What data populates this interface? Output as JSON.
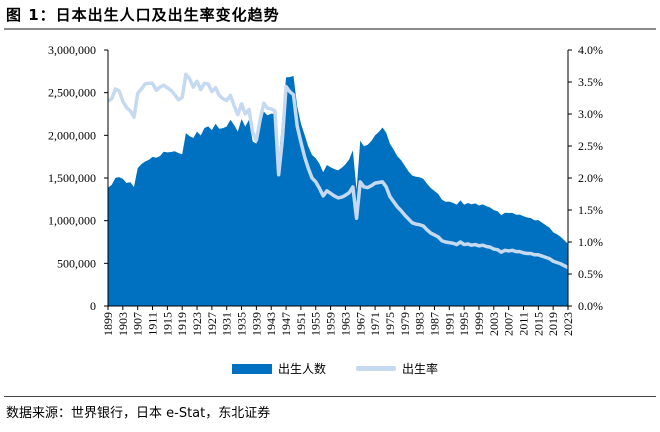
{
  "title": "图 1：日本出生人口及出生率变化趋势",
  "source": "数据来源：世界银行，日本 e-Stat，东北证券",
  "chart_data": {
    "type": "area+line",
    "title": "图 1：日本出生人口及出生率变化趋势",
    "x_start": 1899,
    "x_end": 2023,
    "x_tick_labels": [
      "1899",
      "1903",
      "1907",
      "1911",
      "1915",
      "1919",
      "1923",
      "1927",
      "1931",
      "1935",
      "1939",
      "1943",
      "1947",
      "1951",
      "1955",
      "1959",
      "1963",
      "1967",
      "1971",
      "1975",
      "1979",
      "1983",
      "1987",
      "1991",
      "1995",
      "1999",
      "2003",
      "2007",
      "2011",
      "2015",
      "2019",
      "2023"
    ],
    "y_left": {
      "range": [
        0,
        3000000
      ],
      "tick_labels": [
        "0",
        "500,000",
        "1,000,000",
        "1,500,000",
        "2,000,000",
        "2,500,000",
        "3,000,000"
      ]
    },
    "y_right": {
      "range": [
        0,
        4.0
      ],
      "unit": "%",
      "tick_labels": [
        "0.0%",
        "0.5%",
        "1.0%",
        "1.5%",
        "2.0%",
        "2.5%",
        "3.0%",
        "3.5%",
        "4.0%"
      ]
    },
    "grid": false,
    "legend_position": "bottom",
    "series": [
      {
        "name": "出生人数",
        "type": "area",
        "axis": "left",
        "color": "#0070C0",
        "values": [
          1386000,
          1420000,
          1501000,
          1510000,
          1490000,
          1441000,
          1452000,
          1395000,
          1615000,
          1663000,
          1694000,
          1712000,
          1747000,
          1737000,
          1757000,
          1808000,
          1800000,
          1804000,
          1813000,
          1792000,
          1779000,
          2026000,
          1991000,
          1969000,
          2043000,
          1998000,
          2086000,
          2105000,
          2061000,
          2136000,
          2077000,
          2085000,
          2103000,
          2183000,
          2121000,
          2044000,
          2191000,
          2102000,
          2181000,
          1928000,
          1902000,
          2116000,
          2278000,
          2234000,
          2254000,
          2250000,
          1700000,
          2200000,
          2679000,
          2682000,
          2697000,
          2338000,
          2138000,
          2005000,
          1868000,
          1770000,
          1731000,
          1665000,
          1567000,
          1653000,
          1626000,
          1606000,
          1589000,
          1619000,
          1660000,
          1717000,
          1824000,
          1361000,
          1936000,
          1872000,
          1890000,
          1934000,
          2001000,
          2039000,
          2092000,
          2030000,
          1901000,
          1833000,
          1755000,
          1709000,
          1643000,
          1577000,
          1529000,
          1515000,
          1509000,
          1490000,
          1432000,
          1383000,
          1347000,
          1314000,
          1247000,
          1222000,
          1223000,
          1209000,
          1188000,
          1238000,
          1187000,
          1207000,
          1192000,
          1203000,
          1178000,
          1191000,
          1171000,
          1154000,
          1124000,
          1111000,
          1063000,
          1093000,
          1090000,
          1091000,
          1070000,
          1071000,
          1051000,
          1037000,
          1030000,
          1004000,
          1006000,
          977000,
          946000,
          918000,
          865000,
          841000,
          812000,
          771000,
          727000
        ]
      },
      {
        "name": "出生率",
        "type": "line",
        "axis": "right",
        "color": "#C5D9F1",
        "values": [
          3.2,
          3.24,
          3.39,
          3.36,
          3.2,
          3.1,
          3.05,
          2.95,
          3.32,
          3.39,
          3.47,
          3.48,
          3.48,
          3.37,
          3.42,
          3.45,
          3.41,
          3.37,
          3.3,
          3.22,
          3.26,
          3.62,
          3.55,
          3.42,
          3.51,
          3.38,
          3.48,
          3.47,
          3.35,
          3.41,
          3.29,
          3.24,
          3.21,
          3.29,
          3.13,
          2.99,
          3.16,
          3.0,
          3.07,
          2.71,
          2.59,
          2.91,
          3.17,
          3.09,
          3.08,
          3.05,
          2.05,
          2.6,
          3.43,
          3.35,
          3.3,
          2.81,
          2.56,
          2.33,
          2.15,
          2.0,
          1.94,
          1.84,
          1.72,
          1.8,
          1.76,
          1.72,
          1.69,
          1.7,
          1.73,
          1.77,
          1.86,
          1.37,
          1.94,
          1.86,
          1.85,
          1.88,
          1.92,
          1.93,
          1.94,
          1.86,
          1.71,
          1.63,
          1.55,
          1.49,
          1.42,
          1.36,
          1.3,
          1.28,
          1.27,
          1.25,
          1.19,
          1.14,
          1.11,
          1.08,
          1.02,
          1.0,
          0.99,
          0.98,
          0.96,
          1.0,
          0.96,
          0.97,
          0.95,
          0.96,
          0.94,
          0.95,
          0.93,
          0.92,
          0.89,
          0.88,
          0.84,
          0.87,
          0.86,
          0.87,
          0.85,
          0.85,
          0.83,
          0.82,
          0.82,
          0.8,
          0.8,
          0.78,
          0.76,
          0.74,
          0.7,
          0.68,
          0.66,
          0.63,
          0.6
        ]
      }
    ]
  }
}
